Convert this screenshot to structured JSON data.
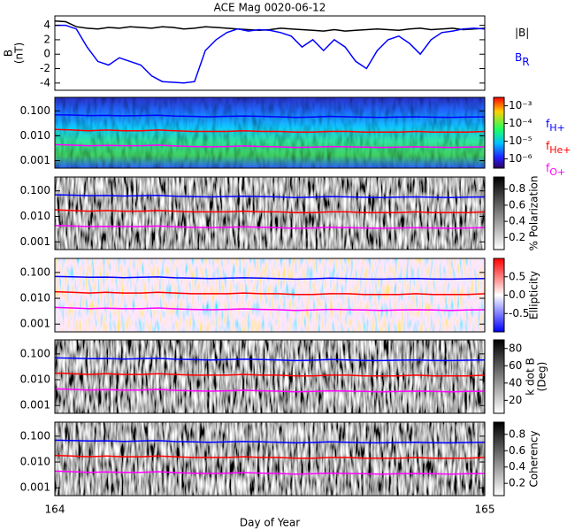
{
  "chart_data": [
    {
      "type": "line",
      "title": "ACE Mag 0020-06-12",
      "ylabel": [
        "B",
        "(nT)"
      ],
      "x": [
        164,
        164.025,
        164.05,
        164.075,
        164.1,
        164.125,
        164.15,
        164.175,
        164.2,
        164.225,
        164.25,
        164.275,
        164.3,
        164.325,
        164.35,
        164.375,
        164.4,
        164.425,
        164.45,
        164.475,
        164.5,
        164.525,
        164.55,
        164.575,
        164.6,
        164.625,
        164.65,
        164.675,
        164.7,
        164.725,
        164.75,
        164.775,
        164.8,
        164.825,
        164.85,
        164.875,
        164.9,
        164.925,
        164.95,
        164.975,
        165
      ],
      "xlim": [
        164,
        165
      ],
      "ylim": [
        -5,
        5.3
      ],
      "yticks": [
        -4,
        -2,
        0,
        2,
        4
      ],
      "series": [
        {
          "name": "|B|",
          "color": "#000000",
          "values": [
            4.6,
            4.5,
            3.8,
            3.6,
            3.5,
            3.7,
            3.6,
            3.8,
            3.7,
            3.6,
            3.8,
            3.7,
            3.5,
            3.6,
            3.8,
            3.7,
            3.6,
            3.5,
            3.4,
            3.3,
            3.4,
            3.6,
            3.5,
            3.4,
            3.3,
            3.2,
            3.4,
            3.2,
            3.3,
            3.4,
            3.5,
            3.4,
            3.3,
            3.5,
            3.6,
            3.4,
            3.5,
            3.6,
            3.4,
            3.5,
            3.6
          ]
        },
        {
          "name": "B",
          "subscript": "R",
          "color": "#0000ff",
          "values": [
            4,
            4,
            3.5,
            1,
            -1,
            -1.5,
            -0.5,
            -1,
            -1.5,
            -3,
            -3.8,
            -3.9,
            -4,
            -3.8,
            0.5,
            2,
            3,
            3.5,
            3.2,
            3.4,
            3.3,
            3,
            2.5,
            1,
            2,
            0.5,
            2,
            1,
            -1,
            -2,
            0.5,
            2,
            2.5,
            1.5,
            0,
            2,
            3,
            3.2,
            3.5,
            3.6,
            3.5
          ]
        }
      ]
    },
    {
      "type": "spectrogram",
      "palette": "rainbow",
      "log_y": true,
      "x": [
        164,
        164.04,
        164.08,
        164.12,
        164.16,
        164.2,
        164.24,
        164.28,
        164.32,
        164.36,
        164.4,
        164.44,
        164.48,
        164.52,
        164.56,
        164.6,
        164.64,
        164.68,
        164.72,
        164.76,
        164.8,
        164.84,
        164.88,
        164.92,
        164.96,
        165
      ],
      "xlim": [
        164,
        165
      ],
      "ylim": [
        0.0005,
        0.35
      ],
      "yticks": [
        0.001,
        {
          "value": 0.01,
          "label": "0.010"
        },
        {
          "value": 0.1,
          "label": "0.100"
        }
      ],
      "colorbar": {
        "log": true,
        "lim": [
          3e-07,
          0.003
        ],
        "ticks": [
          {
            "value": 1e-06,
            "label": "10⁻⁶"
          },
          {
            "value": 1e-05,
            "label": "10⁻⁵"
          },
          {
            "value": 0.0001,
            "label": "10⁻⁴"
          },
          {
            "value": 0.001,
            "label": "10⁻³"
          }
        ]
      },
      "series": [
        {
          "name": "f",
          "subscript": "H+",
          "color": "#0000ff",
          "values": [
            0.07,
            0.068,
            0.065,
            0.066,
            0.063,
            0.065,
            0.067,
            0.062,
            0.06,
            0.058,
            0.06,
            0.062,
            0.06,
            0.058,
            0.055,
            0.057,
            0.06,
            0.058,
            0.056,
            0.055,
            0.057,
            0.058,
            0.056,
            0.055,
            0.057,
            0.058
          ]
        },
        {
          "name": "f",
          "subscript": "He+",
          "color": "#ff0000",
          "values": [
            0.018,
            0.017,
            0.016,
            0.017,
            0.016,
            0.016,
            0.017,
            0.016,
            0.015,
            0.015,
            0.015,
            0.016,
            0.015,
            0.015,
            0.014,
            0.014,
            0.015,
            0.015,
            0.014,
            0.014,
            0.014,
            0.015,
            0.014,
            0.014,
            0.014,
            0.015
          ]
        },
        {
          "name": "f",
          "subscript": "O+",
          "color": "#ff00ff",
          "values": [
            0.0044,
            0.0042,
            0.004,
            0.0041,
            0.004,
            0.004,
            0.0042,
            0.0039,
            0.0037,
            0.0036,
            0.0037,
            0.0039,
            0.0037,
            0.0036,
            0.0034,
            0.0035,
            0.0037,
            0.0036,
            0.0035,
            0.0034,
            0.0035,
            0.0036,
            0.0035,
            0.0034,
            0.0035,
            0.0036
          ]
        }
      ]
    },
    {
      "type": "spectrogram",
      "palette": "gray",
      "log_y": true,
      "x": [
        164,
        164.04,
        164.08,
        164.12,
        164.16,
        164.2,
        164.24,
        164.28,
        164.32,
        164.36,
        164.4,
        164.44,
        164.48,
        164.52,
        164.56,
        164.6,
        164.64,
        164.68,
        164.72,
        164.76,
        164.8,
        164.84,
        164.88,
        164.92,
        164.96,
        165
      ],
      "xlim": [
        164,
        165
      ],
      "ylim": [
        0.0005,
        0.35
      ],
      "yticks": [
        0.001,
        {
          "value": 0.01,
          "label": "0.010"
        },
        {
          "value": 0.1,
          "label": "0.100"
        }
      ],
      "colorbar": {
        "label": "% Polarization",
        "lim": [
          0.05,
          0.95
        ],
        "ticks": [
          0.2,
          0.4,
          0.6,
          0.8
        ]
      },
      "series": [
        {
          "color": "#0000ff",
          "values": [
            0.07,
            0.068,
            0.065,
            0.066,
            0.063,
            0.065,
            0.067,
            0.062,
            0.06,
            0.058,
            0.06,
            0.062,
            0.06,
            0.058,
            0.055,
            0.057,
            0.06,
            0.058,
            0.056,
            0.055,
            0.057,
            0.058,
            0.056,
            0.055,
            0.057,
            0.058
          ]
        },
        {
          "color": "#ff0000",
          "values": [
            0.018,
            0.017,
            0.016,
            0.017,
            0.016,
            0.016,
            0.017,
            0.016,
            0.015,
            0.015,
            0.015,
            0.016,
            0.015,
            0.015,
            0.014,
            0.014,
            0.015,
            0.015,
            0.014,
            0.014,
            0.014,
            0.015,
            0.014,
            0.014,
            0.014,
            0.015
          ]
        },
        {
          "color": "#ff00ff",
          "values": [
            0.0044,
            0.0042,
            0.004,
            0.0041,
            0.004,
            0.004,
            0.0042,
            0.0039,
            0.0037,
            0.0036,
            0.0037,
            0.0039,
            0.0037,
            0.0036,
            0.0034,
            0.0035,
            0.0037,
            0.0036,
            0.0035,
            0.0034,
            0.0035,
            0.0036,
            0.0035,
            0.0034,
            0.0035,
            0.0036
          ]
        }
      ]
    },
    {
      "type": "spectrogram",
      "palette": "bwr",
      "log_y": true,
      "x": [
        164,
        164.04,
        164.08,
        164.12,
        164.16,
        164.2,
        164.24,
        164.28,
        164.32,
        164.36,
        164.4,
        164.44,
        164.48,
        164.52,
        164.56,
        164.6,
        164.64,
        164.68,
        164.72,
        164.76,
        164.8,
        164.84,
        164.88,
        164.92,
        164.96,
        165
      ],
      "xlim": [
        164,
        165
      ],
      "ylim": [
        0.0005,
        0.35
      ],
      "yticks": [
        0.001,
        {
          "value": 0.01,
          "label": "0.010"
        },
        {
          "value": 0.1,
          "label": "0.100"
        }
      ],
      "colorbar": {
        "label": "Ellipticity",
        "lim": [
          -1,
          1
        ],
        "ticks": [
          -0.5,
          {
            "value": 0,
            "label": "0.0"
          },
          0.5
        ]
      },
      "series": [
        {
          "color": "#0000ff",
          "values": [
            0.07,
            0.068,
            0.065,
            0.066,
            0.063,
            0.065,
            0.067,
            0.062,
            0.06,
            0.058,
            0.06,
            0.062,
            0.06,
            0.058,
            0.055,
            0.057,
            0.06,
            0.058,
            0.056,
            0.055,
            0.057,
            0.058,
            0.056,
            0.055,
            0.057,
            0.058
          ]
        },
        {
          "color": "#ff0000",
          "values": [
            0.018,
            0.017,
            0.016,
            0.017,
            0.016,
            0.016,
            0.017,
            0.016,
            0.015,
            0.015,
            0.015,
            0.016,
            0.015,
            0.015,
            0.014,
            0.014,
            0.015,
            0.015,
            0.014,
            0.014,
            0.014,
            0.015,
            0.014,
            0.014,
            0.014,
            0.015
          ]
        },
        {
          "color": "#ff00ff",
          "values": [
            0.0044,
            0.0042,
            0.004,
            0.0041,
            0.004,
            0.004,
            0.0042,
            0.0039,
            0.0037,
            0.0036,
            0.0037,
            0.0039,
            0.0037,
            0.0036,
            0.0034,
            0.0035,
            0.0037,
            0.0036,
            0.0035,
            0.0034,
            0.0035,
            0.0036,
            0.0035,
            0.0034,
            0.0035,
            0.0036
          ]
        }
      ]
    },
    {
      "type": "spectrogram",
      "palette": "gray",
      "log_y": true,
      "x": [
        164,
        164.04,
        164.08,
        164.12,
        164.16,
        164.2,
        164.24,
        164.28,
        164.32,
        164.36,
        164.4,
        164.44,
        164.48,
        164.52,
        164.56,
        164.6,
        164.64,
        164.68,
        164.72,
        164.76,
        164.8,
        164.84,
        164.88,
        164.92,
        164.96,
        165
      ],
      "xlim": [
        164,
        165
      ],
      "ylim": [
        0.0005,
        0.35
      ],
      "yticks": [
        0.001,
        {
          "value": 0.01,
          "label": "0.010"
        },
        {
          "value": 0.1,
          "label": "0.100"
        }
      ],
      "colorbar": {
        "label": [
          "k dot B",
          "(Deg)"
        ],
        "lim": [
          5,
          90
        ],
        "ticks": [
          20,
          40,
          60,
          80
        ]
      },
      "series": [
        {
          "color": "#0000ff",
          "values": [
            0.07,
            0.068,
            0.065,
            0.066,
            0.063,
            0.065,
            0.067,
            0.062,
            0.06,
            0.058,
            0.06,
            0.062,
            0.06,
            0.058,
            0.055,
            0.057,
            0.06,
            0.058,
            0.056,
            0.055,
            0.057,
            0.058,
            0.056,
            0.055,
            0.057,
            0.058
          ]
        },
        {
          "color": "#ff0000",
          "values": [
            0.018,
            0.017,
            0.016,
            0.017,
            0.016,
            0.016,
            0.017,
            0.016,
            0.015,
            0.015,
            0.015,
            0.016,
            0.015,
            0.015,
            0.014,
            0.014,
            0.015,
            0.015,
            0.014,
            0.014,
            0.014,
            0.015,
            0.014,
            0.014,
            0.014,
            0.015
          ]
        },
        {
          "color": "#ff00ff",
          "values": [
            0.0044,
            0.0042,
            0.004,
            0.0041,
            0.004,
            0.004,
            0.0042,
            0.0039,
            0.0037,
            0.0036,
            0.0037,
            0.0039,
            0.0037,
            0.0036,
            0.0034,
            0.0035,
            0.0037,
            0.0036,
            0.0035,
            0.0034,
            0.0035,
            0.0036,
            0.0035,
            0.0034,
            0.0035,
            0.0036
          ]
        }
      ]
    },
    {
      "type": "spectrogram",
      "palette": "gray",
      "log_y": true,
      "xlabel": "Day of Year",
      "x": [
        164,
        164.04,
        164.08,
        164.12,
        164.16,
        164.2,
        164.24,
        164.28,
        164.32,
        164.36,
        164.4,
        164.44,
        164.48,
        164.52,
        164.56,
        164.6,
        164.64,
        164.68,
        164.72,
        164.76,
        164.8,
        164.84,
        164.88,
        164.92,
        164.96,
        165
      ],
      "xlim": [
        164,
        165
      ],
      "xticks": [
        164,
        165
      ],
      "ylim": [
        0.0005,
        0.35
      ],
      "yticks": [
        0.001,
        {
          "value": 0.01,
          "label": "0.010"
        },
        {
          "value": 0.1,
          "label": "0.100"
        }
      ],
      "colorbar": {
        "label": "Coherency",
        "lim": [
          0.05,
          0.95
        ],
        "ticks": [
          0.2,
          0.4,
          0.6,
          0.8
        ]
      },
      "series": [
        {
          "color": "#0000ff",
          "values": [
            0.07,
            0.068,
            0.065,
            0.066,
            0.063,
            0.065,
            0.067,
            0.062,
            0.06,
            0.058,
            0.06,
            0.062,
            0.06,
            0.058,
            0.055,
            0.057,
            0.06,
            0.058,
            0.056,
            0.055,
            0.057,
            0.058,
            0.056,
            0.055,
            0.057,
            0.058
          ]
        },
        {
          "color": "#ff0000",
          "values": [
            0.018,
            0.017,
            0.016,
            0.017,
            0.016,
            0.016,
            0.017,
            0.016,
            0.015,
            0.015,
            0.015,
            0.016,
            0.015,
            0.015,
            0.014,
            0.014,
            0.015,
            0.015,
            0.014,
            0.014,
            0.014,
            0.015,
            0.014,
            0.014,
            0.014,
            0.015
          ]
        },
        {
          "color": "#ff00ff",
          "values": [
            0.0044,
            0.0042,
            0.004,
            0.0041,
            0.004,
            0.004,
            0.0042,
            0.0039,
            0.0037,
            0.0036,
            0.0037,
            0.0039,
            0.0037,
            0.0036,
            0.0034,
            0.0035,
            0.0037,
            0.0036,
            0.0035,
            0.0034,
            0.0035,
            0.0036,
            0.0035,
            0.0034,
            0.0035,
            0.0036
          ]
        }
      ]
    }
  ]
}
